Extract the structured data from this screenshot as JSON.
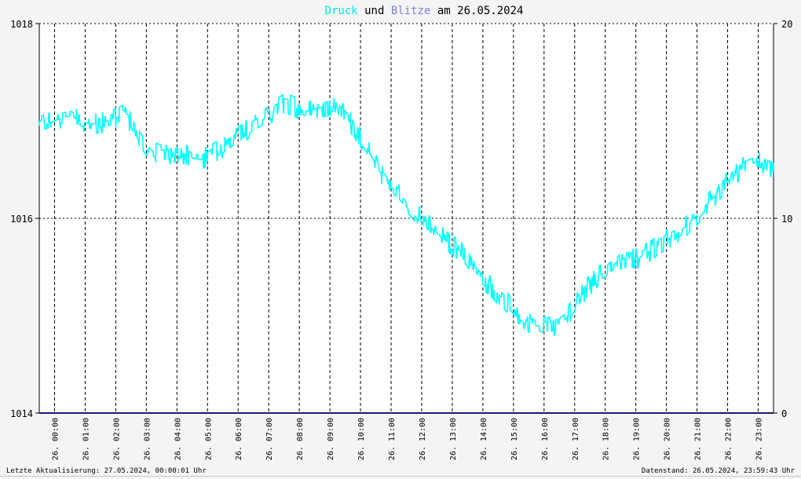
{
  "chart_data": {
    "type": "line",
    "title_parts": [
      {
        "text": "Druck",
        "color": "#00e5e5"
      },
      {
        "text": " und ",
        "color": "#000000"
      },
      {
        "text": "Blitze",
        "color": "#7f7fd6"
      },
      {
        "text": " am 26.05.2024",
        "color": "#000000"
      }
    ],
    "x_tick_labels": [
      "26. 00:00",
      "26. 01:00",
      "26. 02:00",
      "26. 03:00",
      "26. 04:00",
      "26. 05:00",
      "26. 06:00",
      "26. 07:00",
      "26. 08:00",
      "26. 09:00",
      "26. 10:00",
      "26. 11:00",
      "26. 12:00",
      "26. 13:00",
      "26. 14:00",
      "26. 15:00",
      "26. 16:00",
      "26. 17:00",
      "26. 18:00",
      "26. 19:00",
      "26. 20:00",
      "26. 21:00",
      "26. 22:00",
      "26. 23:00"
    ],
    "x_range_hours": [
      0,
      24
    ],
    "y_left": {
      "range": [
        1014,
        1018
      ],
      "ticks": [
        "1014",
        "1016",
        "1018"
      ],
      "tick_values": [
        1014,
        1016,
        1018
      ]
    },
    "y_right": {
      "range": [
        0,
        20
      ],
      "ticks": [
        "0",
        "10",
        "20"
      ],
      "tick_values": [
        0,
        10,
        20
      ]
    },
    "grid": true,
    "series": [
      {
        "name": "Druck",
        "color": "#00ffff",
        "axis": "left",
        "x": [
          0,
          0.25,
          0.5,
          0.75,
          1,
          1.25,
          1.5,
          1.75,
          2,
          2.25,
          2.5,
          2.75,
          3,
          3.25,
          3.5,
          3.75,
          4,
          4.25,
          4.5,
          4.75,
          5,
          5.25,
          5.5,
          5.75,
          6,
          6.25,
          6.5,
          6.75,
          7,
          7.25,
          7.5,
          7.75,
          8,
          8.25,
          8.5,
          8.75,
          9,
          9.25,
          9.5,
          9.75,
          10,
          10.25,
          10.5,
          10.75,
          11,
          11.25,
          11.5,
          11.75,
          12,
          12.25,
          12.5,
          12.75,
          13,
          13.25,
          13.5,
          13.75,
          14,
          14.25,
          14.5,
          14.75,
          15,
          15.25,
          15.5,
          15.75,
          16,
          16.25,
          16.5,
          16.75,
          17,
          17.25,
          17.5,
          17.75,
          18,
          18.25,
          18.5,
          18.75,
          19,
          19.25,
          19.5,
          19.75,
          20,
          20.25,
          20.5,
          20.75,
          21,
          21.25,
          21.5,
          21.75,
          22,
          22.25,
          22.5,
          22.75,
          23,
          23.25,
          23.5,
          23.75,
          24
        ],
        "y": [
          1016.95,
          1016.97,
          1017.0,
          1017.03,
          1017.05,
          1017.02,
          1016.98,
          1016.97,
          1016.98,
          1017.0,
          1017.03,
          1017.06,
          1016.98,
          1016.85,
          1016.75,
          1016.68,
          1016.65,
          1016.66,
          1016.68,
          1016.66,
          1016.62,
          1016.6,
          1016.63,
          1016.68,
          1016.72,
          1016.78,
          1016.83,
          1016.9,
          1016.95,
          1017.0,
          1017.05,
          1017.12,
          1017.18,
          1017.16,
          1017.12,
          1017.1,
          1017.12,
          1017.14,
          1017.15,
          1017.13,
          1017.05,
          1016.95,
          1016.83,
          1016.7,
          1016.55,
          1016.42,
          1016.32,
          1016.25,
          1016.17,
          1016.08,
          1016.0,
          1015.92,
          1015.85,
          1015.78,
          1015.72,
          1015.67,
          1015.55,
          1015.45,
          1015.37,
          1015.3,
          1015.22,
          1015.15,
          1015.07,
          1015.0,
          1014.93,
          1014.9,
          1014.88,
          1014.89,
          1014.92,
          1014.98,
          1015.1,
          1015.22,
          1015.32,
          1015.4,
          1015.45,
          1015.52,
          1015.58,
          1015.6,
          1015.58,
          1015.62,
          1015.67,
          1015.73,
          1015.78,
          1015.82,
          1015.88,
          1015.95,
          1016.03,
          1016.12,
          1016.2,
          1016.3,
          1016.38,
          1016.45,
          1016.52,
          1016.56,
          1016.58,
          1016.55,
          1016.52
        ]
      },
      {
        "name": "Blitze",
        "color": "#1a1a70",
        "axis": "right",
        "x": [
          0,
          24
        ],
        "y": [
          0,
          0
        ]
      }
    ]
  },
  "footer": {
    "left": "Letzte Aktualisierung: 27.05.2024, 00:00:01 Uhr",
    "right": "Datenstand: 26.05.2024, 23:59:43 Uhr"
  }
}
